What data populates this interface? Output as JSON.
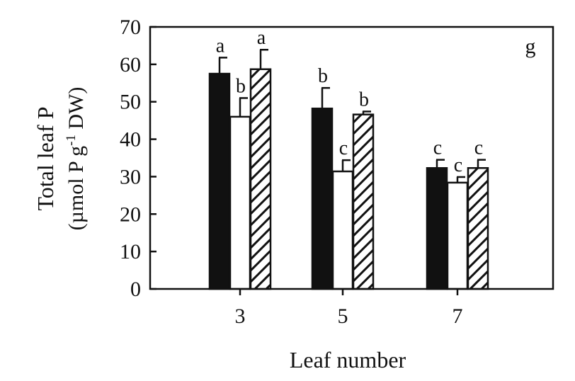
{
  "chart_data": {
    "type": "bar",
    "panel_label": "g",
    "xlabel": "Leaf number",
    "ylabel_line1": "Total leaf P",
    "ylabel_line2_pre": "(µmol P g",
    "ylabel_line2_sup": "-1",
    "ylabel_line2_post": " DW)",
    "ylim": [
      0,
      70
    ],
    "yticks": [
      0,
      10,
      20,
      30,
      40,
      50,
      60,
      70
    ],
    "categories": [
      "3",
      "5",
      "7"
    ],
    "series": [
      {
        "fill": "solid",
        "values": [
          57.5,
          48.2,
          32.3
        ],
        "errors": [
          4.3,
          5.5,
          2.2
        ],
        "letters": [
          "a",
          "b",
          "c"
        ]
      },
      {
        "fill": "open",
        "values": [
          46.0,
          31.4,
          28.4
        ],
        "errors": [
          5.0,
          3.0,
          1.5
        ],
        "letters": [
          "b",
          "c",
          "c"
        ]
      },
      {
        "fill": "hatched",
        "values": [
          58.7,
          46.6,
          32.3
        ],
        "errors": [
          5.2,
          0.8,
          2.2
        ],
        "letters": [
          "a",
          "b",
          "c"
        ]
      }
    ],
    "grid": false,
    "legend": "none",
    "colors": {
      "ink": "#111111",
      "background": "#ffffff"
    }
  }
}
